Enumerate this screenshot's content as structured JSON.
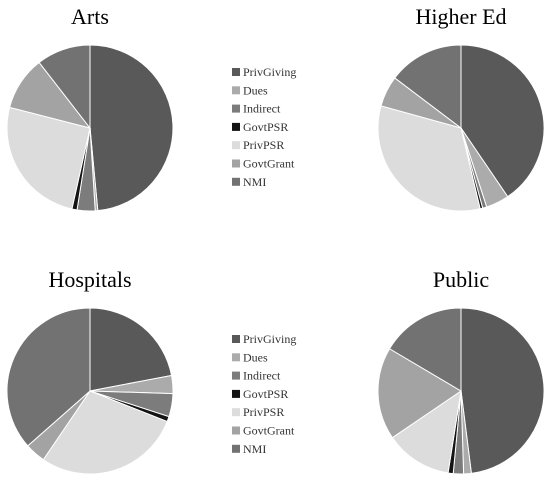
{
  "chart_data": [
    {
      "type": "pie",
      "title": "Arts",
      "categories": [
        "PrivGiving",
        "Dues",
        "Indirect",
        "GovtPSR",
        "PrivPSR",
        "GovtGrant",
        "NMI"
      ],
      "values": [
        48.5,
        0.5,
        3.5,
        1.0,
        25.5,
        10.5,
        10.5
      ]
    },
    {
      "type": "pie",
      "title": "Higher Ed",
      "categories": [
        "PrivGiving",
        "Dues",
        "Indirect",
        "GovtPSR",
        "PrivPSR",
        "GovtGrant",
        "NMI"
      ],
      "values": [
        40.5,
        4.5,
        0.8,
        0.5,
        33.0,
        6.0,
        14.7
      ]
    },
    {
      "type": "pie",
      "title": "Hospitals",
      "categories": [
        "PrivGiving",
        "Dues",
        "Indirect",
        "GovtPSR",
        "PrivPSR",
        "GovtGrant",
        "NMI"
      ],
      "values": [
        22.0,
        3.5,
        4.5,
        1.0,
        28.5,
        4.0,
        36.5
      ]
    },
    {
      "type": "pie",
      "title": "Public",
      "categories": [
        "PrivGiving",
        "Dues",
        "Indirect",
        "GovtPSR",
        "PrivPSR",
        "GovtGrant",
        "NMI"
      ],
      "values": [
        48.0,
        1.5,
        2.0,
        1.0,
        13.0,
        18.0,
        16.5
      ]
    }
  ],
  "legend": {
    "labels": [
      "PrivGiving",
      "Dues",
      "Indirect",
      "GovtPSR",
      "PrivPSR",
      "GovtGrant",
      "NMI"
    ],
    "colors": [
      "#595959",
      "#ababab",
      "#7c7c7c",
      "#141414",
      "#dcdcdc",
      "#a3a3a3",
      "#727272"
    ]
  }
}
